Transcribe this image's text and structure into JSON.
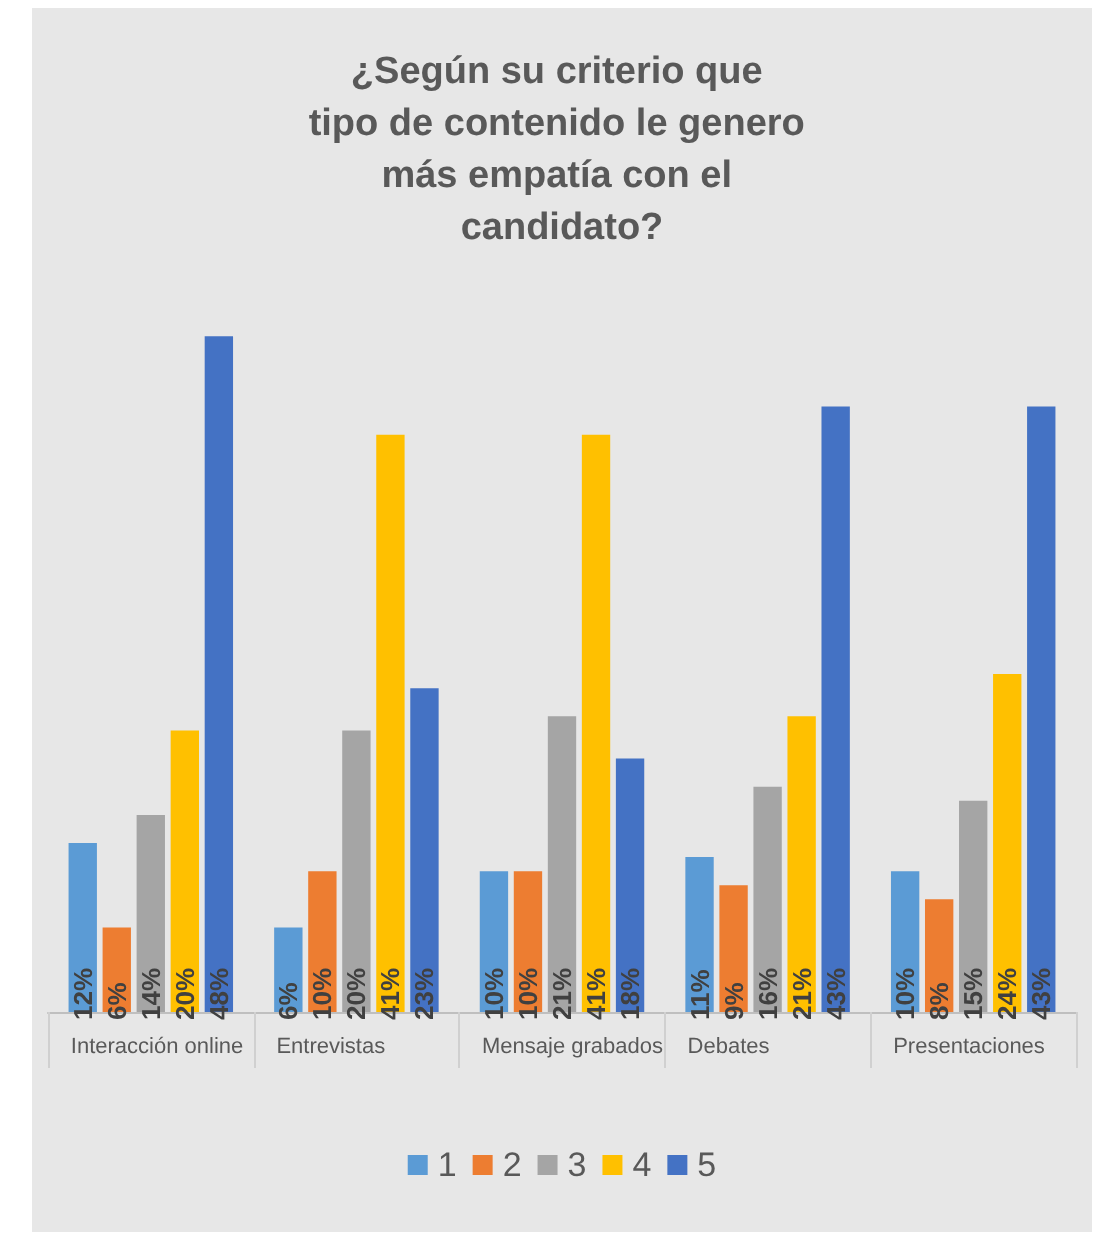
{
  "chart_data": {
    "type": "bar",
    "title": "¿Según su criterio que tipo de contenido le genero más empatía con el candidato?",
    "categories": [
      "Interacción online",
      "Entrevistas",
      "Mensaje grabados",
      "Debates",
      "Presentaciones"
    ],
    "series": [
      {
        "name": "1",
        "color": "#5b9bd5",
        "values": [
          12,
          6,
          10,
          11,
          10
        ],
        "value_labels": [
          "12%",
          "6%",
          "10%",
          "11%",
          "10%"
        ]
      },
      {
        "name": "2",
        "color": "#ed7d31",
        "values": [
          6,
          10,
          10,
          9,
          8
        ],
        "value_labels": [
          "6%",
          "10%",
          "10%",
          "9%",
          "8%"
        ]
      },
      {
        "name": "3",
        "color": "#a5a5a5",
        "values": [
          14,
          20,
          21,
          16,
          15
        ],
        "value_labels": [
          "14%",
          "20%",
          "21%",
          "16%",
          "15%"
        ]
      },
      {
        "name": "4",
        "color": "#ffc000",
        "values": [
          20,
          41,
          41,
          21,
          24
        ],
        "value_labels": [
          "20%",
          "41%",
          "41%",
          "21%",
          "24%"
        ]
      },
      {
        "name": "5",
        "color": "#4472c4",
        "values": [
          48,
          23,
          18,
          43,
          43
        ],
        "value_labels": [
          "48%",
          "23%",
          "18%",
          "43%",
          "43%"
        ]
      }
    ],
    "grid": false,
    "legend": "bottom"
  }
}
